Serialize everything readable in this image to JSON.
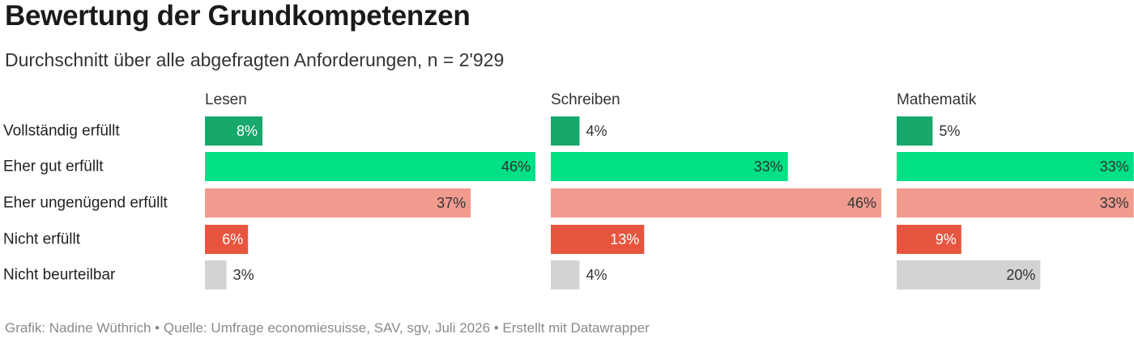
{
  "title": "Bewertung der Grundkompetenzen",
  "subtitle": "Durchschnitt über alle abgefragten Anforderungen, n = 2'929",
  "footer": "Grafik: Nadine Wüthrich • Quelle: Umfrage economiesuisse, SAV, sgv, Juli 2026 • Erstellt mit Datawrapper",
  "chart_data": {
    "type": "bar",
    "orientation": "horizontal",
    "layout": "small-multiples",
    "categories": [
      "Vollständig erfüllt",
      "Eher gut erfüllt",
      "Eher ungenügend erfüllt",
      "Nicht erfüllt",
      "Nicht beurteilbar"
    ],
    "category_colors": [
      "#17a86b",
      "#00e084",
      "#f19b8f",
      "#e8553f",
      "#d3d3d3"
    ],
    "label_suffix": "%",
    "xlim": [
      0,
      46
    ],
    "panels": [
      {
        "name": "Lesen",
        "values": [
          8,
          46,
          37,
          6,
          3
        ]
      },
      {
        "name": "Schreiben",
        "values": [
          4,
          33,
          46,
          13,
          4
        ]
      },
      {
        "name": "Mathematik",
        "values": [
          5,
          33,
          33,
          9,
          20
        ]
      }
    ]
  }
}
